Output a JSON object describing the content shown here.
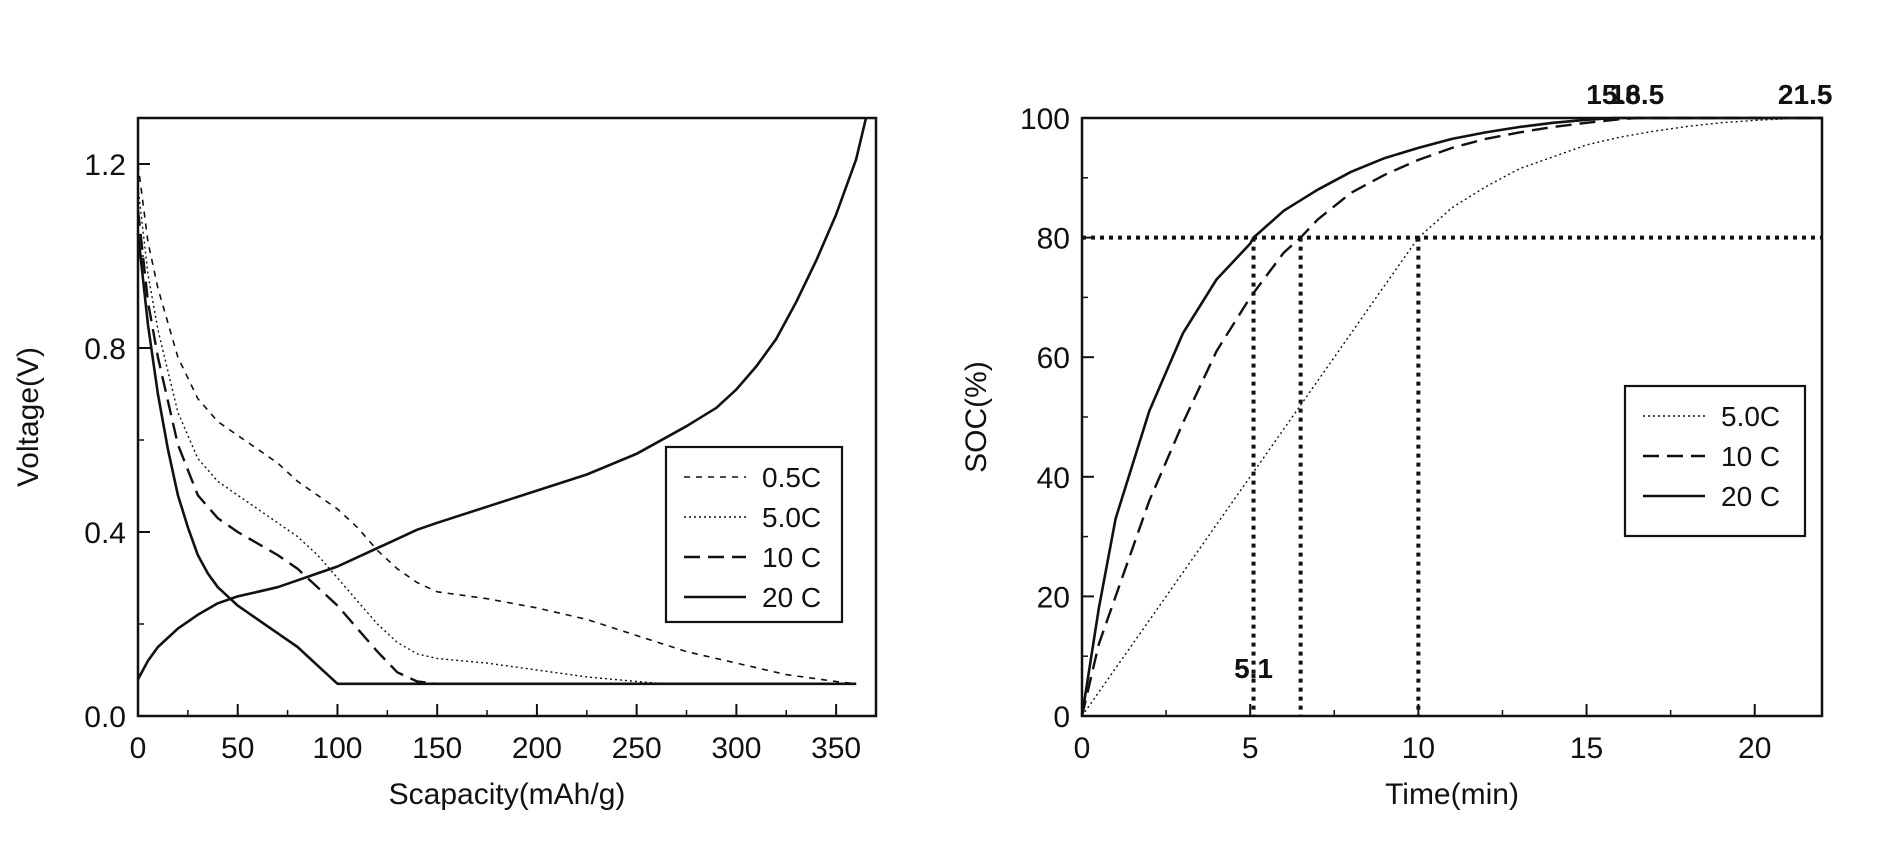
{
  "chart_data": [
    {
      "type": "line",
      "xlabel": "Scapacity(mAh/g)",
      "ylabel": "Voltage(V)",
      "xlim": [
        0,
        370
      ],
      "ylim": [
        0,
        1.3
      ],
      "xticks": [
        0,
        50,
        100,
        150,
        200,
        250,
        300,
        350
      ],
      "yticks": [
        0.0,
        0.4,
        0.8,
        1.2
      ],
      "xtick_labels": [
        "0",
        "50",
        "100",
        "150",
        "200",
        "250",
        "300",
        "350"
      ],
      "ytick_labels": [
        "0.0",
        "0.4",
        "0.8",
        "1.2"
      ],
      "grid": false,
      "legend_position": "right",
      "series": [
        {
          "name": "0.5C",
          "style": "short-dash",
          "x": [
            0,
            5,
            10,
            20,
            30,
            40,
            50,
            60,
            70,
            80,
            90,
            100,
            110,
            120,
            130,
            140,
            150,
            175,
            200,
            225,
            250,
            275,
            300,
            325,
            350,
            360
          ],
          "y": [
            1.2,
            1.03,
            0.93,
            0.78,
            0.69,
            0.64,
            0.61,
            0.58,
            0.55,
            0.51,
            0.48,
            0.45,
            0.41,
            0.36,
            0.32,
            0.29,
            0.27,
            0.255,
            0.235,
            0.21,
            0.175,
            0.14,
            0.115,
            0.09,
            0.075,
            0.07
          ]
        },
        {
          "name": "5.0C",
          "style": "dotted",
          "x": [
            0,
            5,
            10,
            20,
            30,
            40,
            50,
            60,
            70,
            80,
            90,
            100,
            110,
            120,
            130,
            140,
            150,
            175,
            200,
            225,
            250,
            265,
            280,
            360
          ],
          "y": [
            1.15,
            0.96,
            0.84,
            0.66,
            0.56,
            0.51,
            0.48,
            0.45,
            0.42,
            0.39,
            0.35,
            0.3,
            0.25,
            0.2,
            0.16,
            0.135,
            0.125,
            0.115,
            0.1,
            0.085,
            0.075,
            0.07,
            0.07,
            0.07
          ]
        },
        {
          "name": "10 C",
          "style": "long-dash",
          "x": [
            0,
            5,
            10,
            20,
            30,
            40,
            50,
            60,
            70,
            80,
            90,
            100,
            110,
            120,
            130,
            140,
            150,
            360
          ],
          "y": [
            1.1,
            0.9,
            0.78,
            0.59,
            0.48,
            0.43,
            0.4,
            0.375,
            0.35,
            0.32,
            0.28,
            0.24,
            0.19,
            0.14,
            0.095,
            0.075,
            0.07,
            0.07
          ]
        },
        {
          "name": "20 C",
          "style": "solid",
          "x": [
            0,
            5,
            10,
            15,
            20,
            25,
            30,
            35,
            40,
            45,
            50,
            60,
            70,
            80,
            90,
            100,
            360
          ],
          "y": [
            1.05,
            0.85,
            0.7,
            0.58,
            0.48,
            0.41,
            0.35,
            0.31,
            0.28,
            0.26,
            0.24,
            0.21,
            0.18,
            0.15,
            0.11,
            0.07,
            0.07
          ]
        },
        {
          "name": "",
          "style": "solid",
          "x": [
            0,
            5,
            10,
            20,
            30,
            40,
            50,
            60,
            70,
            80,
            90,
            100,
            110,
            120,
            130,
            140,
            150,
            175,
            200,
            225,
            250,
            275,
            290,
            300,
            310,
            320,
            330,
            340,
            350,
            360,
            365
          ],
          "y": [
            0.08,
            0.12,
            0.15,
            0.19,
            0.22,
            0.245,
            0.26,
            0.27,
            0.28,
            0.295,
            0.31,
            0.325,
            0.345,
            0.365,
            0.385,
            0.405,
            0.42,
            0.455,
            0.49,
            0.525,
            0.57,
            0.63,
            0.67,
            0.71,
            0.76,
            0.82,
            0.9,
            0.99,
            1.09,
            1.21,
            1.3
          ]
        }
      ]
    },
    {
      "type": "line",
      "xlabel": "Time(min)",
      "ylabel": "SOC(%)",
      "xlim": [
        0,
        22
      ],
      "ylim": [
        0,
        100
      ],
      "xticks": [
        0,
        5,
        10,
        15,
        20
      ],
      "yticks": [
        0,
        20,
        40,
        60,
        80,
        100
      ],
      "xtick_labels": [
        "0",
        "5",
        "10",
        "15",
        "20"
      ],
      "ytick_labels": [
        "0",
        "20",
        "40",
        "60",
        "80",
        "100"
      ],
      "grid": false,
      "legend_position": "right",
      "series": [
        {
          "name": "5.0C",
          "style": "dotted",
          "x": [
            0,
            1,
            2,
            3,
            4,
            5,
            6,
            7,
            8,
            9,
            10,
            11,
            12,
            13,
            14,
            15,
            16,
            17,
            18,
            19,
            20,
            21,
            21.5,
            22
          ],
          "y": [
            0,
            8,
            16,
            24,
            32,
            40,
            48,
            56,
            64,
            72,
            80,
            85,
            88.5,
            91.5,
            93.5,
            95.5,
            96.8,
            97.8,
            98.6,
            99.2,
            99.6,
            99.9,
            100,
            100
          ]
        },
        {
          "name": "10 C",
          "style": "long-dash",
          "x": [
            0,
            0.5,
            1,
            2,
            3,
            4,
            5,
            6,
            6.5,
            7,
            8,
            9,
            10,
            11,
            12,
            13,
            14,
            15,
            16,
            16.5,
            22
          ],
          "y": [
            0,
            12,
            20,
            36,
            49,
            61,
            70,
            77.5,
            80,
            83,
            87.5,
            90.5,
            93,
            95,
            96.5,
            97.6,
            98.5,
            99.2,
            99.8,
            100,
            100
          ]
        },
        {
          "name": "20 C",
          "style": "solid",
          "x": [
            0,
            0.5,
            1,
            2,
            3,
            4,
            5,
            5.1,
            6,
            7,
            8,
            9,
            10,
            11,
            12,
            13,
            14,
            15,
            15.8,
            22
          ],
          "y": [
            0,
            18,
            33,
            51,
            64,
            73,
            79,
            80,
            84.5,
            88,
            91,
            93.3,
            95,
            96.5,
            97.6,
            98.5,
            99.2,
            99.7,
            100,
            100
          ]
        }
      ],
      "reference_lines": {
        "horizontal_y": 80,
        "vertical_x": [
          5.1,
          6.5,
          10
        ]
      },
      "annotations": [
        {
          "text": "5.1",
          "x": 5.1,
          "y": 5
        },
        {
          "text": "15.8",
          "x": 15.8,
          "y": 100
        },
        {
          "text": "16.5",
          "x": 16.5,
          "y": 100
        },
        {
          "text": "21.5",
          "x": 21.5,
          "y": 100
        }
      ]
    }
  ]
}
